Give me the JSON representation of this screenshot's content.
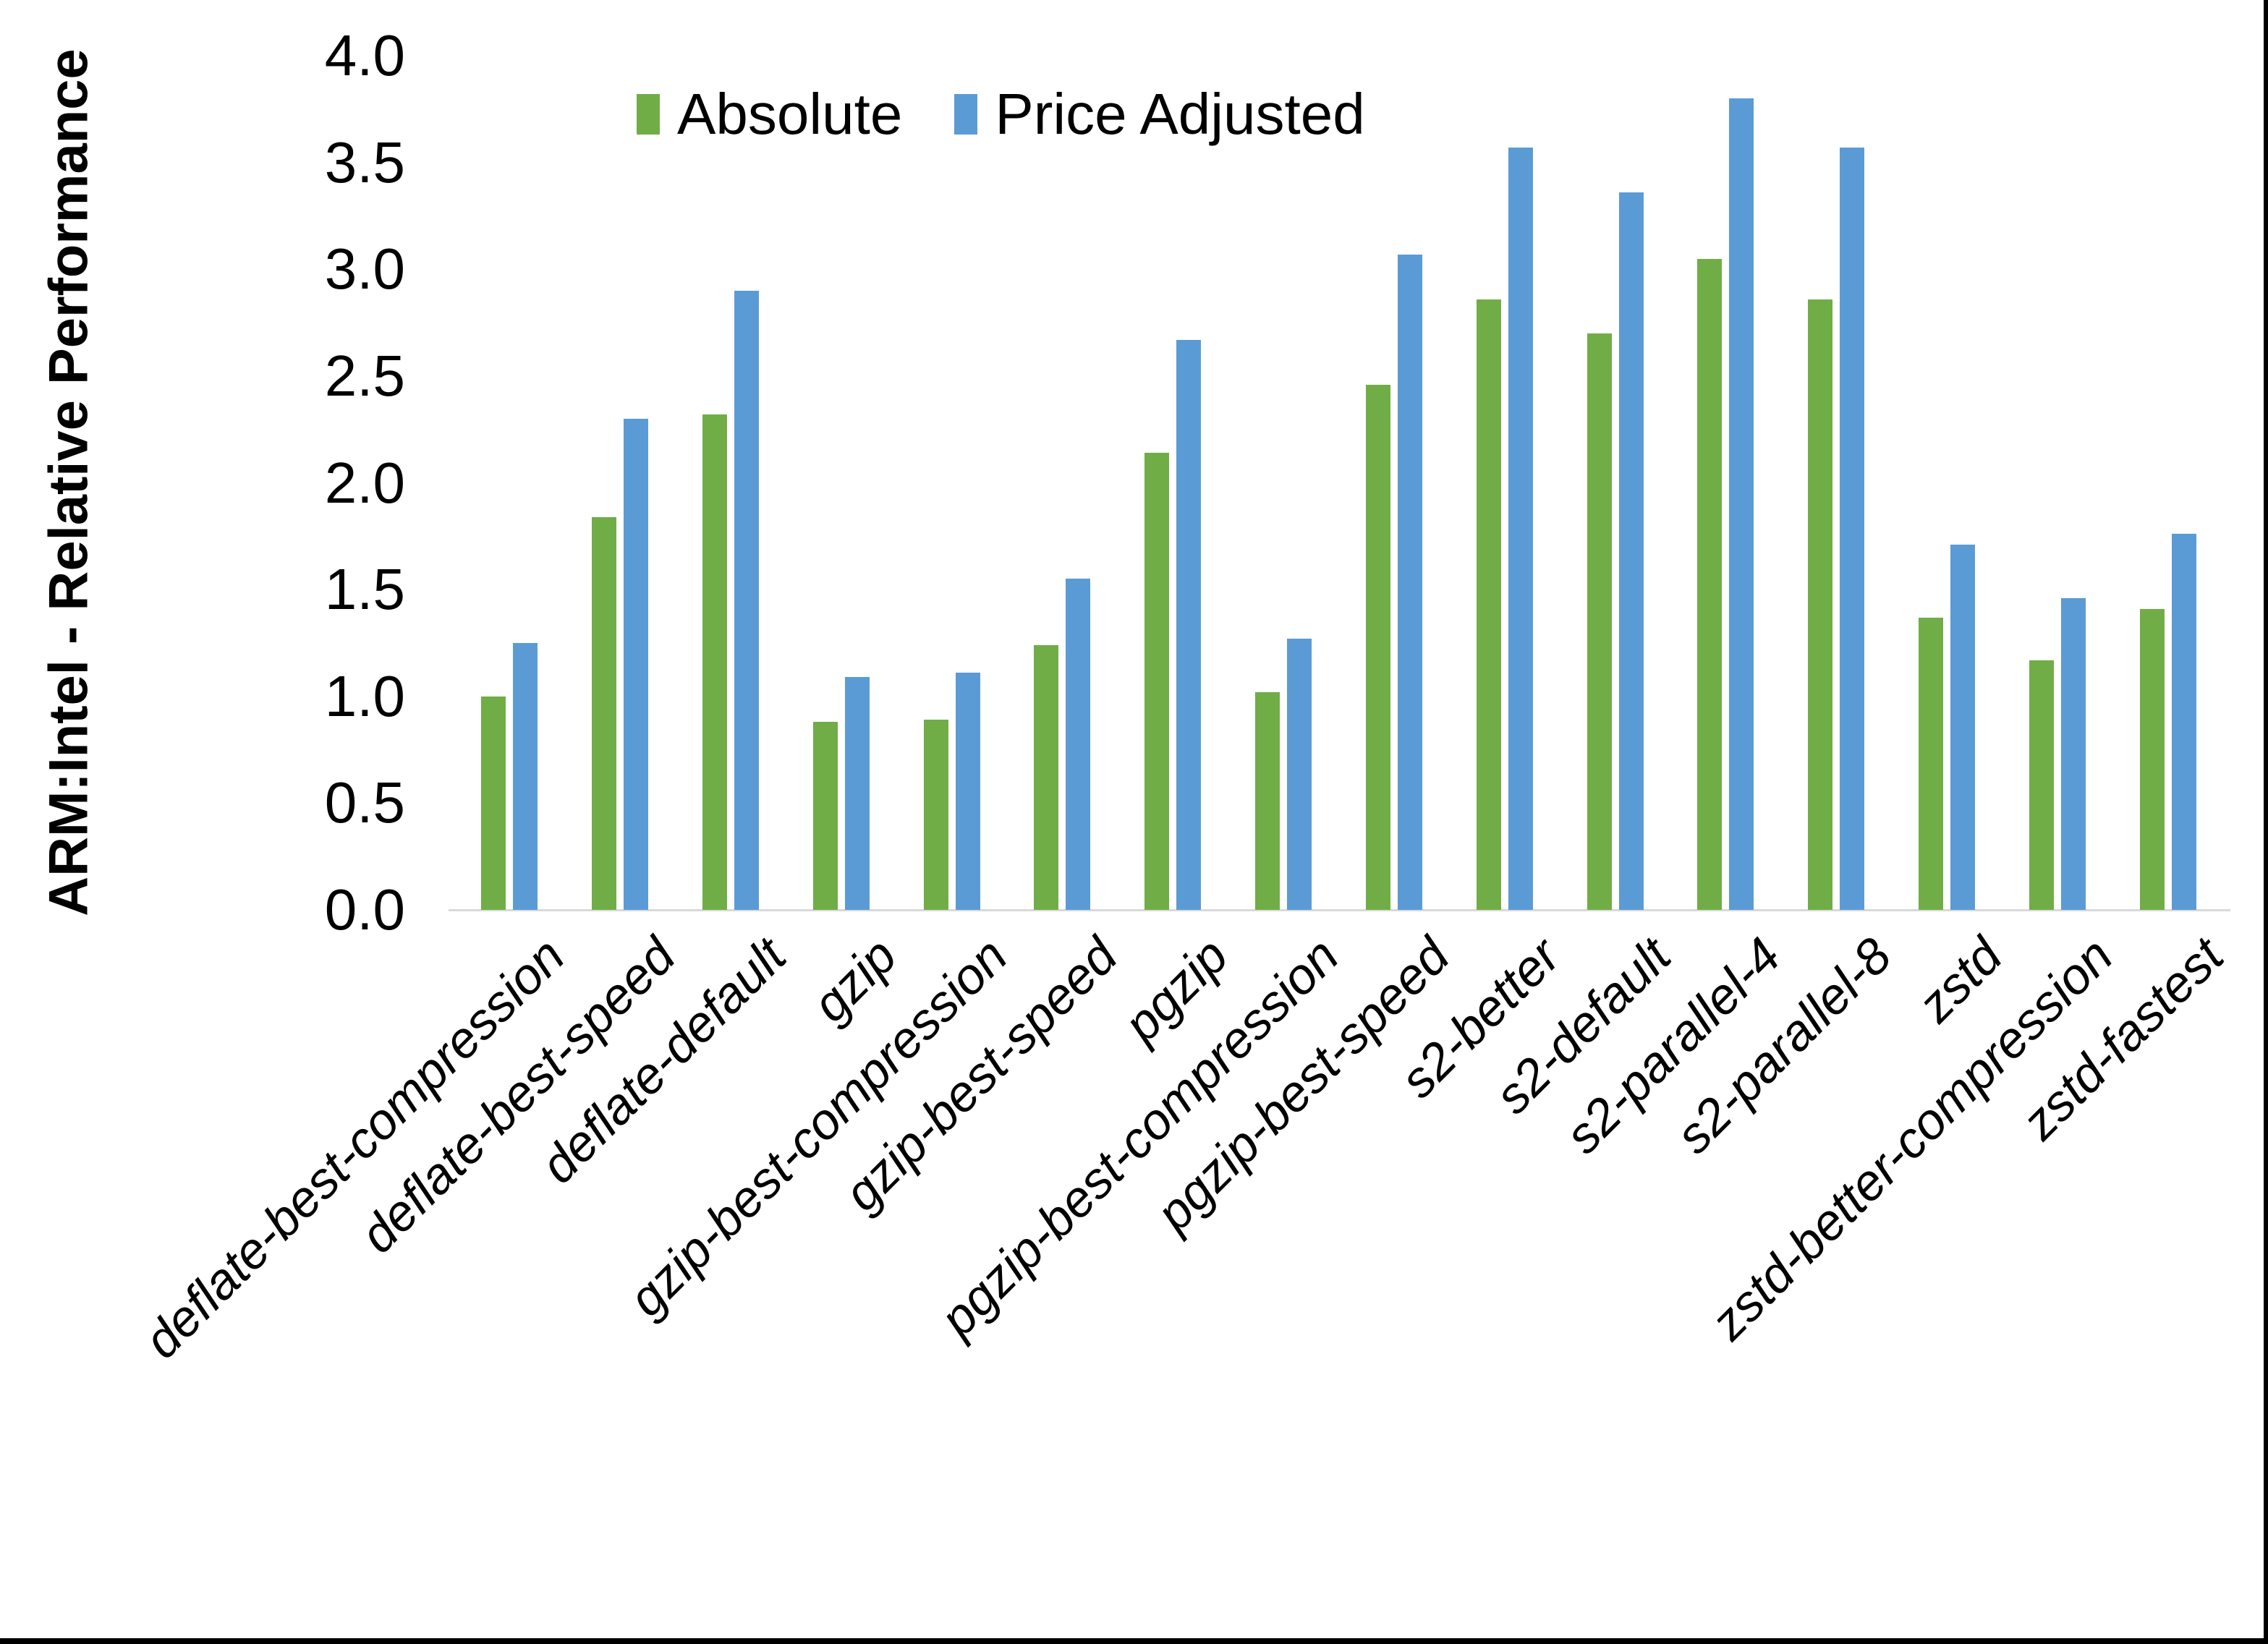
{
  "figure": {
    "background": "#ffffff",
    "bottom_edge_color": "#000000",
    "right_edge_color": "#000000",
    "baseline_color": "#d9d9d9"
  },
  "chart_data": {
    "type": "bar",
    "title": "",
    "ylabel": "ARM:Intel - Relative Performance",
    "xlabel": "",
    "ylim": [
      0,
      4
    ],
    "ytick_step": 0.5,
    "yticks": [
      "0.0",
      "0.5",
      "1.0",
      "1.5",
      "2.0",
      "2.5",
      "3.0",
      "3.5",
      "4.0"
    ],
    "grid": false,
    "legend_position": "top-center",
    "categories": [
      "deflate-best-compression",
      "deflate-best-speed",
      "deflate-default",
      "gzip",
      "gzip-best-compression",
      "gzip-best-speed",
      "pgzip",
      "pgzip-best-compression",
      "pgzip-best-speed",
      "s2-better",
      "s2-default",
      "s2-parallel-4",
      "s2-parallel-8",
      "zstd",
      "zstd-better-compression",
      "zstd-fastest"
    ],
    "series": [
      {
        "name": "Absolute",
        "color": "#70AD47",
        "values": [
          1.0,
          1.84,
          2.32,
          0.88,
          0.89,
          1.24,
          2.14,
          1.02,
          2.46,
          2.86,
          2.7,
          3.05,
          2.86,
          1.37,
          1.17,
          1.41
        ]
      },
      {
        "name": "Price Adjusted",
        "color": "#5B9BD5",
        "values": [
          1.25,
          2.3,
          2.9,
          1.09,
          1.11,
          1.55,
          2.67,
          1.27,
          3.07,
          3.57,
          3.36,
          3.8,
          3.57,
          1.71,
          1.46,
          1.76
        ]
      }
    ]
  }
}
